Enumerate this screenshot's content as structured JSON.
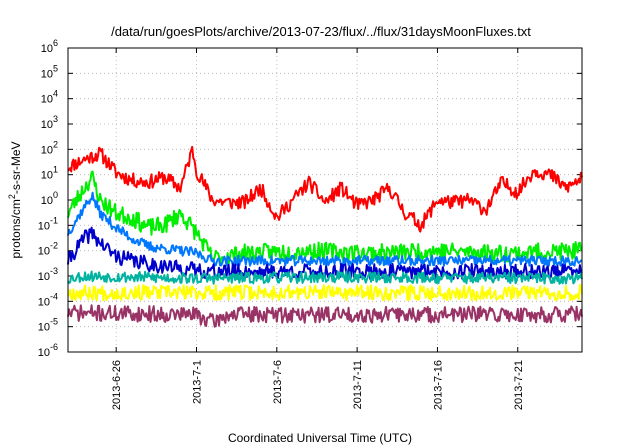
{
  "chart_data": {
    "type": "line",
    "title": "/data/run/goesPlots/archive/2013-07-23/flux/../flux/31daysMoonFluxes.txt",
    "xlabel": "Coordinated Universal Time (UTC)",
    "ylabel_parts": {
      "base": "protons/cm",
      "sup": "2",
      "rest": "-s-sr-MeV"
    },
    "y_scale": "log",
    "ylim_exponents": [
      -6,
      6
    ],
    "y_tick_base": "10",
    "y_tick_exponents": [
      "-6",
      "-5",
      "-4",
      "-3",
      "-2",
      "-1",
      "0",
      "1",
      "2",
      "3",
      "4",
      "5",
      "6"
    ],
    "xlim": [
      "2013-06-23",
      "2013-07-25"
    ],
    "x_ticks": [
      {
        "date": "2013-06-26",
        "label": "2013-6-26"
      },
      {
        "date": "2013-07-01",
        "label": "2013-7-1"
      },
      {
        "date": "2013-07-06",
        "label": "2013-7-6"
      },
      {
        "date": "2013-07-11",
        "label": "2013-7-11"
      },
      {
        "date": "2013-07-16",
        "label": "2013-7-16"
      },
      {
        "date": "2013-07-21",
        "label": "2013-7-21"
      }
    ],
    "grid": true,
    "series": [
      {
        "color": "#ff0000",
        "width": 2,
        "noise": 0.28,
        "seed": 11,
        "points": [
          [
            "2013-06-23",
            20
          ],
          [
            "2013-06-24",
            40
          ],
          [
            "2013-06-25",
            70
          ],
          [
            "2013-06-25 12:00",
            30
          ],
          [
            "2013-06-26",
            12
          ],
          [
            "2013-06-27",
            6
          ],
          [
            "2013-06-28",
            5
          ],
          [
            "2013-06-29",
            8
          ],
          [
            "2013-06-30",
            3
          ],
          [
            "2013-06-30 18:00",
            100
          ],
          [
            "2013-07-01",
            15
          ],
          [
            "2013-07-02",
            1
          ],
          [
            "2013-07-03",
            0.8
          ],
          [
            "2013-07-04",
            0.8
          ],
          [
            "2013-07-05",
            3
          ],
          [
            "2013-07-06",
            0.2
          ],
          [
            "2013-07-07",
            1
          ],
          [
            "2013-07-08",
            5
          ],
          [
            "2013-07-09",
            0.8
          ],
          [
            "2013-07-10",
            3
          ],
          [
            "2013-07-11",
            0.6
          ],
          [
            "2013-07-12",
            1
          ],
          [
            "2013-07-13",
            3
          ],
          [
            "2013-07-14",
            0.3
          ],
          [
            "2013-07-15",
            0.1
          ],
          [
            "2013-07-16",
            1
          ],
          [
            "2013-07-17",
            0.8
          ],
          [
            "2013-07-18",
            1
          ],
          [
            "2013-07-19",
            0.4
          ],
          [
            "2013-07-20",
            5
          ],
          [
            "2013-07-21",
            2
          ],
          [
            "2013-07-22",
            15
          ],
          [
            "2013-07-23",
            10
          ],
          [
            "2013-07-24",
            3
          ],
          [
            "2013-07-25",
            7
          ]
        ]
      },
      {
        "color": "#00ee00",
        "width": 2,
        "noise": 0.35,
        "seed": 23,
        "points": [
          [
            "2013-06-23",
            0.3
          ],
          [
            "2013-06-24",
            3
          ],
          [
            "2013-06-24 12:00",
            8
          ],
          [
            "2013-06-25",
            1
          ],
          [
            "2013-06-26",
            0.3
          ],
          [
            "2013-06-27",
            0.2
          ],
          [
            "2013-06-28",
            0.08
          ],
          [
            "2013-06-29",
            0.1
          ],
          [
            "2013-06-30",
            0.3
          ],
          [
            "2013-07-01",
            0.05
          ],
          [
            "2013-07-02",
            0.005
          ],
          [
            "2013-07-04",
            0.008
          ],
          [
            "2013-07-08",
            0.01
          ],
          [
            "2013-07-12",
            0.008
          ],
          [
            "2013-07-16",
            0.01
          ],
          [
            "2013-07-20",
            0.008
          ],
          [
            "2013-07-25",
            0.01
          ]
        ]
      },
      {
        "color": "#0077ff",
        "width": 2,
        "noise": 0.2,
        "seed": 37,
        "points": [
          [
            "2013-06-23",
            0.05
          ],
          [
            "2013-06-24",
            0.5
          ],
          [
            "2013-06-24 12:00",
            1.5
          ],
          [
            "2013-06-25",
            0.3
          ],
          [
            "2013-06-26",
            0.08
          ],
          [
            "2013-06-27",
            0.03
          ],
          [
            "2013-06-28",
            0.015
          ],
          [
            "2013-06-29",
            0.012
          ],
          [
            "2013-06-30",
            0.01
          ],
          [
            "2013-07-01",
            0.008
          ],
          [
            "2013-07-02",
            0.004
          ],
          [
            "2013-07-25",
            0.004
          ]
        ]
      },
      {
        "color": "#0000cc",
        "width": 2,
        "noise": 0.3,
        "seed": 41,
        "points": [
          [
            "2013-06-23",
            0.004
          ],
          [
            "2013-06-24",
            0.03
          ],
          [
            "2013-06-24 12:00",
            0.05
          ],
          [
            "2013-06-25",
            0.02
          ],
          [
            "2013-06-26",
            0.006
          ],
          [
            "2013-06-27",
            0.004
          ],
          [
            "2013-06-28",
            0.003
          ],
          [
            "2013-06-30",
            0.002
          ],
          [
            "2013-07-02",
            0.0015
          ],
          [
            "2013-07-25",
            0.0015
          ]
        ]
      },
      {
        "color": "#00b3a0",
        "width": 2,
        "noise": 0.22,
        "seed": 53,
        "points": [
          [
            "2013-06-23",
            0.0008
          ],
          [
            "2013-06-24",
            0.001
          ],
          [
            "2013-07-01",
            0.0008
          ],
          [
            "2013-07-10",
            0.0009
          ],
          [
            "2013-07-25",
            0.0008
          ]
        ]
      },
      {
        "color": "#ffff00",
        "width": 2,
        "noise": 0.3,
        "seed": 67,
        "points": [
          [
            "2013-06-23",
            0.00022
          ],
          [
            "2013-07-10",
            0.00022
          ],
          [
            "2013-07-25",
            0.00022
          ]
        ]
      },
      {
        "color": "#993366",
        "width": 2,
        "noise": 0.32,
        "seed": 71,
        "points": [
          [
            "2013-06-23",
            3.5e-05
          ],
          [
            "2013-07-01",
            3e-05
          ],
          [
            "2013-07-02",
            1.5e-05
          ],
          [
            "2013-07-03",
            3e-05
          ],
          [
            "2013-07-25",
            3e-05
          ]
        ]
      }
    ]
  }
}
